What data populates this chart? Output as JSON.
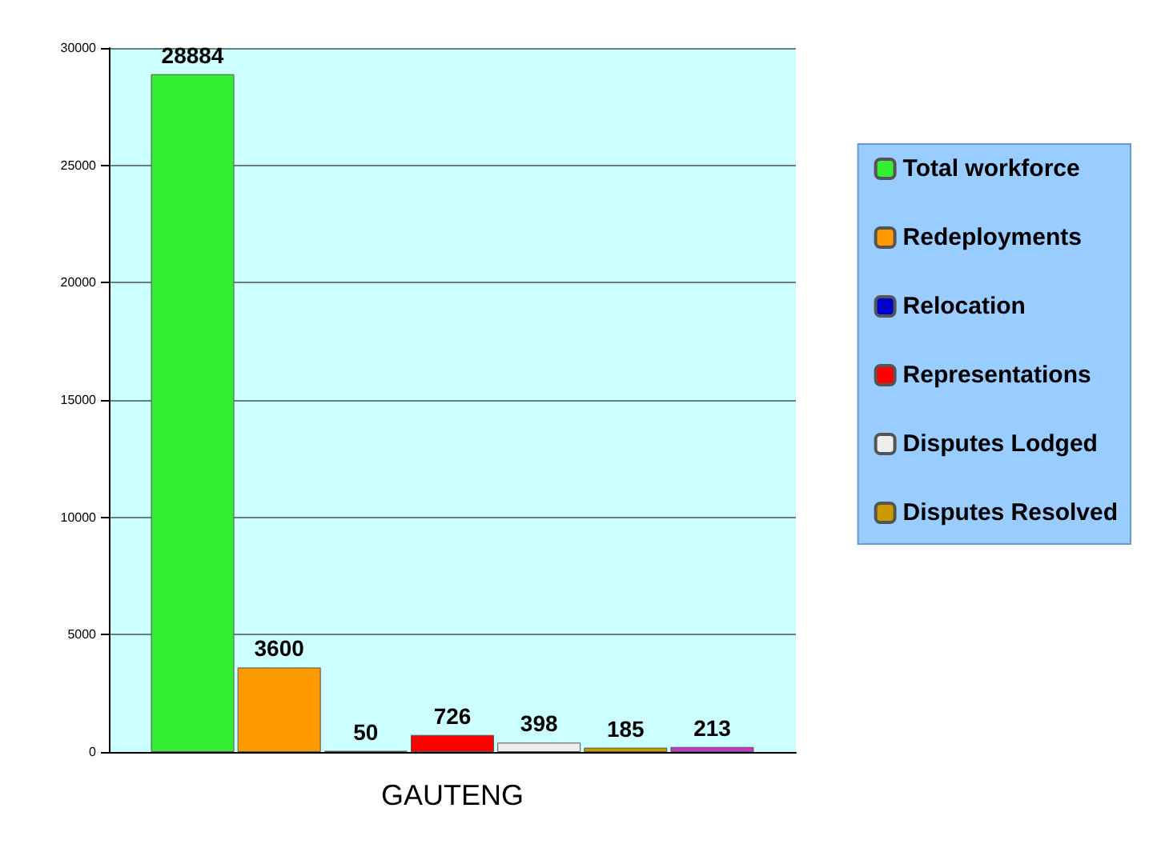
{
  "chart_data": {
    "type": "bar",
    "categories": [
      "GAUTENG"
    ],
    "series": [
      {
        "name": "Total workforce",
        "color": "#33ee33",
        "values": [
          28884
        ]
      },
      {
        "name": "Redeployments",
        "color": "#ff9900",
        "values": [
          3600
        ]
      },
      {
        "name": "Relocation",
        "color": "#0000cc",
        "values": [
          50
        ]
      },
      {
        "name": "Representations",
        "color": "#ff0000",
        "values": [
          726
        ]
      },
      {
        "name": "Disputes Lodged",
        "color": "#eeeeee",
        "values": [
          398
        ]
      },
      {
        "name": "Disputes Resolved",
        "color": "#cc9900",
        "values": [
          185
        ]
      },
      {
        "color": "#cc33cc",
        "values": [
          213
        ]
      }
    ],
    "ylim": [
      0,
      30000
    ],
    "yticks": [
      0,
      5000,
      10000,
      15000,
      20000,
      25000,
      30000
    ],
    "grid": "y",
    "legend": "right",
    "data_labels": true
  }
}
